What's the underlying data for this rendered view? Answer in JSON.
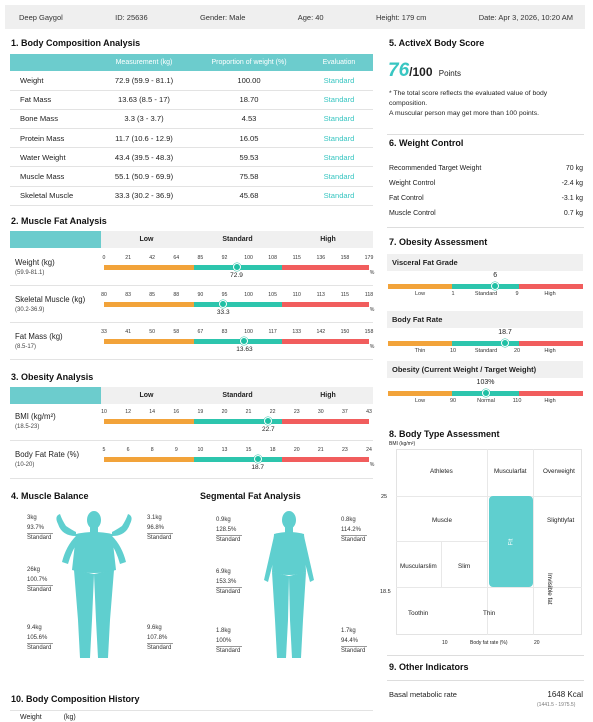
{
  "header": {
    "name": "Deep Gaygol",
    "id": "ID: 25636",
    "gender": "Gender: Male",
    "age": "Age: 40",
    "height": "Height: 179 cm",
    "date": "Date: Apr 3, 2026, 10:20 AM"
  },
  "body_comp": {
    "title": "1. Body Composition Analysis",
    "col_meas": "Measurement (kg)",
    "col_prop": "Proportion of weight (%)",
    "col_eval": "Evaluation",
    "rows": [
      {
        "label": "Weight",
        "meas": "72.9 (59.9 - 81.1)",
        "prop": "100.00",
        "eval": "Standard"
      },
      {
        "label": "Fat Mass",
        "meas": "13.63 (8.5 - 17)",
        "prop": "18.70",
        "eval": "Standard"
      },
      {
        "label": "Bone Mass",
        "meas": "3.3 (3 - 3.7)",
        "prop": "4.53",
        "eval": "Standard"
      },
      {
        "label": "Protein Mass",
        "meas": "11.7 (10.6 - 12.9)",
        "prop": "16.05",
        "eval": "Standard"
      },
      {
        "label": "Water Weight",
        "meas": "43.4 (39.5 - 48.3)",
        "prop": "59.53",
        "eval": "Standard"
      },
      {
        "label": "Muscle Mass",
        "meas": "55.1 (50.9 - 69.9)",
        "prop": "75.58",
        "eval": "Standard"
      },
      {
        "label": "Skeletal Muscle",
        "meas": "33.3 (30.2 - 36.9)",
        "prop": "45.68",
        "eval": "Standard"
      }
    ]
  },
  "muscle_fat": {
    "title": "2. Muscle Fat Analysis",
    "low": "Low",
    "standard": "Standard",
    "high": "High",
    "rows": [
      {
        "label": "Weight (kg)",
        "sub": "(59.9-81.1)",
        "ticks": [
          "0",
          "21",
          "42",
          "64",
          "85",
          "92",
          "100",
          "108",
          "115",
          "136",
          "158",
          "179"
        ],
        "unit": "%",
        "value": "72.9",
        "pos": 0.5
      },
      {
        "label": "Skeletal Muscle (kg)",
        "sub": "(30.2-36.9)",
        "ticks": [
          "80",
          "83",
          "85",
          "88",
          "90",
          "95",
          "100",
          "105",
          "110",
          "113",
          "115",
          "118"
        ],
        "unit": "%",
        "value": "33.3",
        "pos": 0.45
      },
      {
        "label": "Fat Mass (kg)",
        "sub": "(8.5-17)",
        "ticks": [
          "33",
          "41",
          "50",
          "58",
          "67",
          "83",
          "100",
          "117",
          "133",
          "142",
          "150",
          "158"
        ],
        "unit": "%",
        "value": "13.63",
        "pos": 0.53
      }
    ]
  },
  "obesity_analysis": {
    "title": "3. Obesity Analysis",
    "low": "Low",
    "standard": "Standard",
    "high": "High",
    "rows": [
      {
        "label": "BMI (kg/m²)",
        "sub": "(18.5-23)",
        "ticks": [
          "10",
          "12",
          "14",
          "16",
          "19",
          "20",
          "21",
          "22",
          "23",
          "30",
          "37",
          "43"
        ],
        "value": "22.7",
        "pos": 0.62
      },
      {
        "label": "Body Fat Rate (%)",
        "sub": "(10-20)",
        "ticks": [
          "5",
          "6",
          "8",
          "9",
          "10",
          "13",
          "15",
          "18",
          "20",
          "21",
          "23",
          "24"
        ],
        "unit": "%",
        "value": "18.7",
        "pos": 0.58
      }
    ]
  },
  "muscle_balance": {
    "title": "4. Muscle Balance",
    "left_arm": {
      "kg": "3kg",
      "pct": "93.7%",
      "eval": "Standard"
    },
    "right_arm": {
      "kg": "3.1kg",
      "pct": "96.8%",
      "eval": "Standard"
    },
    "trunk": {
      "kg": "26kg",
      "pct": "100.7%",
      "eval": "Standard"
    },
    "left_leg": {
      "kg": "9.4kg",
      "pct": "105.6%",
      "eval": "Standard"
    },
    "right_leg": {
      "kg": "9.6kg",
      "pct": "107.8%",
      "eval": "Standard"
    }
  },
  "segmental_fat": {
    "title": "Segmental Fat Analysis",
    "left_arm": {
      "kg": "0.9kg",
      "pct": "128.5%",
      "eval": "Standard"
    },
    "right_arm": {
      "kg": "0.8kg",
      "pct": "114.2%",
      "eval": "Standard"
    },
    "trunk": {
      "kg": "6.9kg",
      "pct": "153.3%",
      "eval": "Standard"
    },
    "left_leg": {
      "kg": "1.8kg",
      "pct": "100%",
      "eval": "Standard"
    },
    "right_leg": {
      "kg": "1.7kg",
      "pct": "94.4%",
      "eval": "Standard"
    }
  },
  "history": {
    "title": "10. Body Composition History",
    "row_label": "Weight",
    "row_unit": "(kg)"
  },
  "activex": {
    "title": "5. ActiveX Body Score",
    "score": "76",
    "out_of": "/100",
    "points": "Points",
    "note1": "* The total score reflects the evaluated value of body composition.",
    "note2": "A muscular person may get more than 100 points."
  },
  "weight_control": {
    "title": "6. Weight Control",
    "rows": [
      {
        "label": "Recommended Target Weight",
        "value": "70 kg"
      },
      {
        "label": "Weight Control",
        "value": "-2.4 kg"
      },
      {
        "label": "Fat Control",
        "value": "-3.1 kg"
      },
      {
        "label": "Muscle Control",
        "value": "0.7 kg"
      }
    ]
  },
  "obesity_assessment": {
    "title": "7. Obesity Assessment",
    "visceral": {
      "title": "Visceral Fat Grade",
      "value": "6",
      "low": "Low",
      "t1": "1",
      "mid": "Standard",
      "t2": "9",
      "high": "High",
      "pos": 0.55
    },
    "fatrate": {
      "title": "Body Fat Rate",
      "value": "18.7",
      "low": "Thin",
      "t1": "10",
      "mid": "Standard",
      "t2": "20",
      "high": "High",
      "pos": 0.6
    },
    "ratio": {
      "title": "Obesity (Current Weight / Target Weight)",
      "value": "103%",
      "low": "Low",
      "t1": "90",
      "mid": "Normal",
      "t2": "110",
      "high": "High",
      "pos": 0.5
    }
  },
  "body_type": {
    "title": "8. Body Type Assessment",
    "y_unit": "BMI (kg/m²)",
    "y_25": "25",
    "y_185": "18.5",
    "x_10": "10",
    "x_label": "Body fat rate (%)",
    "x_20": "20",
    "cells": [
      "Athletes",
      "Muscularfat",
      "Overweight",
      "Muscle",
      "Slightlyfat",
      "Muscularslim",
      "Slim",
      "Invisible fat",
      "Toothin",
      "Thin"
    ],
    "marker": "Fit"
  },
  "other": {
    "title": "9. Other Indicators",
    "rows": [
      {
        "label": "Basal metabolic rate",
        "value": "1648 Kcal",
        "sub": "(1441.5 - 1975.5)"
      }
    ]
  }
}
